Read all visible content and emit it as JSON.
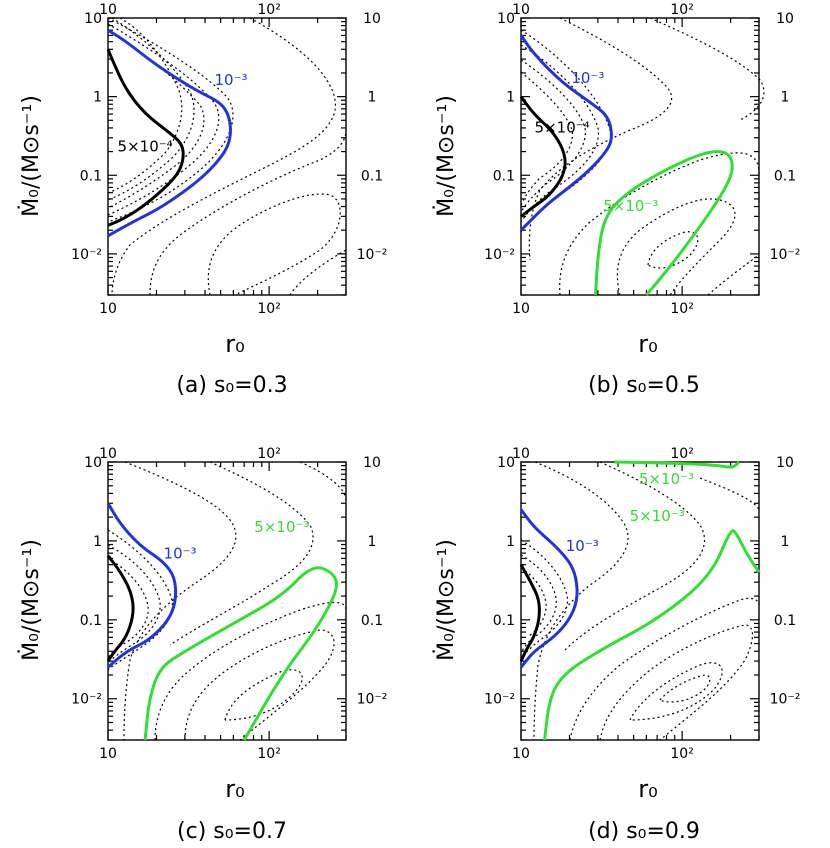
{
  "chart_data": [
    {
      "type": "contour",
      "caption": "(a) s₀=0.3",
      "xlabel": "r₀",
      "ylabel": "Ṁ₀/(M⊙s⁻¹)",
      "xscale": "log",
      "yscale": "log",
      "xlim": [
        10,
        300
      ],
      "ylim": [
        0.003,
        10
      ],
      "x_ticklabels_bottom": [
        "10",
        "10²"
      ],
      "x_ticklabels_top": [
        "10",
        "10²"
      ],
      "y_ticklabels_left": [
        "10",
        "1",
        "0.1",
        "10⁻²"
      ],
      "y_ticklabels_right": [
        "10",
        "1",
        "0.1",
        "10⁻²"
      ],
      "contours": [
        {
          "label": "10⁻³",
          "color": "#2233dd",
          "points": [
            [
              10,
              7
            ],
            [
              13,
              5
            ],
            [
              20,
              2.5
            ],
            [
              35,
              1.2
            ],
            [
              50,
              0.85
            ],
            [
              57,
              0.55
            ],
            [
              58,
              0.3
            ],
            [
              52,
              0.18
            ],
            [
              38,
              0.09
            ],
            [
              22,
              0.04
            ],
            [
              14,
              0.025
            ],
            [
              10,
              0.017
            ]
          ]
        },
        {
          "label": "5×10⁻⁴",
          "color": "#000000",
          "points": [
            [
              10,
              4
            ],
            [
              11,
              2.5
            ],
            [
              13,
              1.2
            ],
            [
              17,
              0.6
            ],
            [
              24,
              0.35
            ],
            [
              29,
              0.25
            ],
            [
              29.5,
              0.16
            ],
            [
              27,
              0.1
            ],
            [
              20,
              0.055
            ],
            [
              15,
              0.035
            ],
            [
              12,
              0.027
            ],
            [
              10,
              0.023
            ]
          ]
        }
      ],
      "contour_labels": [
        {
          "text": "10⁻³",
          "color": "#2233dd",
          "at": [
            58,
            1.4
          ]
        },
        {
          "text": "5×10⁻⁴",
          "color": "#000000",
          "at": [
            17,
            0.2
          ]
        }
      ]
    },
    {
      "type": "contour",
      "caption": "(b) s₀=0.5",
      "xlabel": "r₀",
      "ylabel": "Ṁ₀/(M⊙s⁻¹)",
      "xscale": "log",
      "yscale": "log",
      "xlim": [
        10,
        300
      ],
      "ylim": [
        0.003,
        10
      ],
      "x_ticklabels_bottom": [
        "10",
        "10²"
      ],
      "x_ticklabels_top": [
        "10",
        "10²"
      ],
      "y_ticklabels_left": [
        "10",
        "1",
        "0.1",
        "10⁻²"
      ],
      "y_ticklabels_right": [
        "10",
        "1",
        "0.1",
        "10⁻²"
      ],
      "contours": [
        {
          "label": "10⁻³",
          "color": "#2233dd",
          "points": [
            [
              10,
              6
            ],
            [
              12,
              3.5
            ],
            [
              18,
              1.5
            ],
            [
              28,
              0.8
            ],
            [
              35,
              0.55
            ],
            [
              37,
              0.3
            ],
            [
              34,
              0.2
            ],
            [
              26,
              0.11
            ],
            [
              18,
              0.06
            ],
            [
              14,
              0.04
            ],
            [
              10,
              0.02
            ]
          ]
        },
        {
          "label": "5×10⁻⁴",
          "color": "#000000",
          "points": [
            [
              10,
              1
            ],
            [
              12,
              0.6
            ],
            [
              16,
              0.35
            ],
            [
              19,
              0.18
            ],
            [
              18.5,
              0.1
            ],
            [
              15,
              0.055
            ],
            [
              12,
              0.04
            ],
            [
              10,
              0.03
            ]
          ]
        },
        {
          "label": "5×10⁻³",
          "color": "#33dd33",
          "points": [
            [
              29,
              0.003
            ],
            [
              30,
              0.01
            ],
            [
              33,
              0.03
            ],
            [
              45,
              0.06
            ],
            [
              80,
              0.12
            ],
            [
              140,
              0.2
            ],
            [
              195,
              0.2
            ],
            [
              210,
              0.12
            ],
            [
              180,
              0.06
            ],
            [
              120,
              0.018
            ],
            [
              85,
              0.007
            ],
            [
              60,
              0.003
            ]
          ]
        }
      ],
      "contour_labels": [
        {
          "text": "10⁻³",
          "color": "#2233dd",
          "at": [
            26,
            1.5
          ]
        },
        {
          "text": "5×10⁻⁴",
          "color": "#000000",
          "at": [
            18,
            0.35
          ]
        },
        {
          "text": "5×10⁻³",
          "color": "#33dd33",
          "at": [
            48,
            0.035
          ]
        }
      ]
    },
    {
      "type": "contour",
      "caption": "(c) s₀=0.7",
      "xlabel": "r₀",
      "ylabel": "Ṁ₀/(M⊙s⁻¹)",
      "xscale": "log",
      "yscale": "log",
      "xlim": [
        10,
        300
      ],
      "ylim": [
        0.003,
        10
      ],
      "x_ticklabels_bottom": [
        "10",
        "10²"
      ],
      "x_ticklabels_top": [
        "10",
        "10²"
      ],
      "y_ticklabels_left": [
        "10",
        "1",
        "0.1",
        "10⁻²"
      ],
      "y_ticklabels_right": [
        "10",
        "1",
        "0.1",
        "10⁻²"
      ],
      "contours": [
        {
          "label": "10⁻³",
          "color": "#2233dd",
          "points": [
            [
              10,
              3
            ],
            [
              12,
              1.6
            ],
            [
              16,
              0.85
            ],
            [
              22,
              0.55
            ],
            [
              26,
              0.35
            ],
            [
              26.5,
              0.18
            ],
            [
              24,
              0.1
            ],
            [
              18,
              0.055
            ],
            [
              13,
              0.04
            ],
            [
              10,
              0.025
            ]
          ]
        },
        {
          "label": "5×10⁻⁴",
          "color": "#000000",
          "points": [
            [
              10,
              0.65
            ],
            [
              12,
              0.4
            ],
            [
              14,
              0.22
            ],
            [
              14.5,
              0.12
            ],
            [
              13,
              0.06
            ],
            [
              11,
              0.04
            ],
            [
              10,
              0.03
            ]
          ]
        },
        {
          "label": "5×10⁻³",
          "color": "#33dd33",
          "points": [
            [
              17,
              0.003
            ],
            [
              18,
              0.01
            ],
            [
              21,
              0.025
            ],
            [
              30,
              0.04
            ],
            [
              60,
              0.09
            ],
            [
              120,
              0.2
            ],
            [
              185,
              0.5
            ],
            [
              250,
              0.4
            ],
            [
              270,
              0.25
            ],
            [
              200,
              0.08
            ],
            [
              120,
              0.02
            ],
            [
              70,
              0.003
            ]
          ]
        }
      ],
      "contour_labels": [
        {
          "text": "10⁻³",
          "color": "#2233dd",
          "at": [
            28,
            0.6
          ]
        },
        {
          "text": "5×10⁻³",
          "color": "#33dd33",
          "at": [
            120,
            1.3
          ]
        }
      ]
    },
    {
      "type": "contour",
      "caption": "(d) s₀=0.9",
      "xlabel": "r₀",
      "ylabel": "Ṁ₀/(M⊙s⁻¹)",
      "xscale": "log",
      "yscale": "log",
      "xlim": [
        10,
        300
      ],
      "ylim": [
        0.003,
        10
      ],
      "x_ticklabels_bottom": [
        "10",
        "10²"
      ],
      "x_ticklabels_top": [
        "10",
        "10²"
      ],
      "y_ticklabels_left": [
        "10",
        "1",
        "0.1",
        "10⁻²"
      ],
      "y_ticklabels_right": [
        "10",
        "1",
        "0.1",
        "10⁻²"
      ],
      "contours": [
        {
          "label": "10⁻³",
          "color": "#2233dd",
          "points": [
            [
              10,
              2.5
            ],
            [
              12,
              1.5
            ],
            [
              16,
              0.9
            ],
            [
              20,
              0.55
            ],
            [
              22,
              0.35
            ],
            [
              22.5,
              0.18
            ],
            [
              20,
              0.1
            ],
            [
              16,
              0.06
            ],
            [
              12,
              0.04
            ],
            [
              10,
              0.025
            ]
          ]
        },
        {
          "label": "5×10⁻⁴",
          "color": "#000000",
          "points": [
            [
              10,
              0.5
            ],
            [
              11.5,
              0.3
            ],
            [
              13,
              0.18
            ],
            [
              13,
              0.1
            ],
            [
              12,
              0.06
            ],
            [
              11,
              0.045
            ],
            [
              10,
              0.03
            ]
          ]
        },
        {
          "label": "5×10⁻³",
          "color": "#33dd33",
          "points": [
            [
              14,
              0.003
            ],
            [
              15,
              0.01
            ],
            [
              18,
              0.02
            ],
            [
              30,
              0.04
            ],
            [
              70,
              0.1
            ],
            [
              150,
              0.35
            ],
            [
              200,
              1.4
            ],
            [
              215,
              1.3
            ],
            [
              250,
              0.7
            ],
            [
              300,
              0.4
            ]
          ]
        },
        {
          "label": "5×10⁻³",
          "color": "#33dd33",
          "points": [
            [
              38,
              10
            ],
            [
              60,
              9.8
            ],
            [
              120,
              9.5
            ],
            [
              170,
              9
            ],
            [
              200,
              8.5
            ],
            [
              215,
              9
            ],
            [
              225,
              10
            ]
          ]
        }
      ],
      "contour_labels": [
        {
          "text": "10⁻³",
          "color": "#2233dd",
          "at": [
            24,
            0.75
          ]
        },
        {
          "text": "5×10⁻³",
          "color": "#33dd33",
          "at": [
            80,
            5.3
          ]
        },
        {
          "text": "5×10⁻³",
          "color": "#33dd33",
          "at": [
            70,
            1.8
          ]
        }
      ]
    }
  ]
}
